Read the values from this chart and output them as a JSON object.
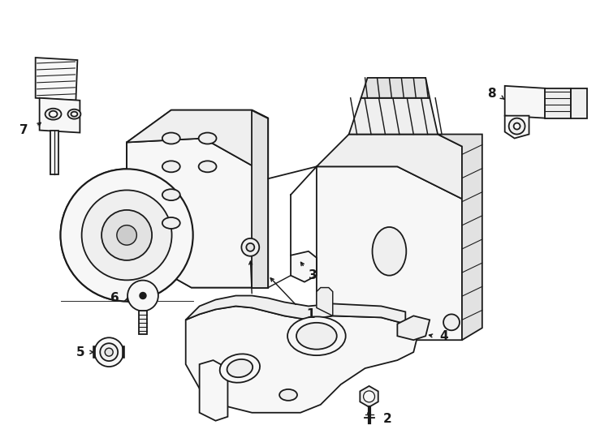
{
  "background_color": "#ffffff",
  "line_color": "#1a1a1a",
  "line_width": 1.3,
  "fig_width": 7.34,
  "fig_height": 5.4,
  "dpi": 100
}
